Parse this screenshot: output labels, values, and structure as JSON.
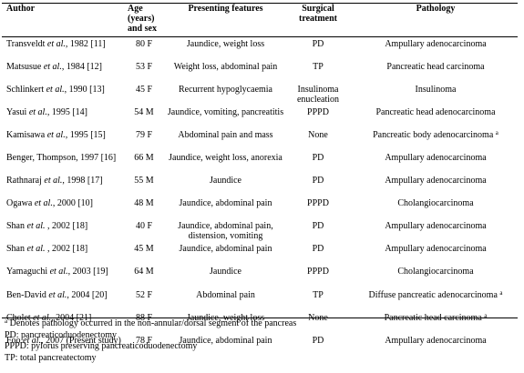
{
  "caption_fragment": "",
  "columns": {
    "author": "Author",
    "age_sex": "Age (years) and sex",
    "features": "Presenting features",
    "surgery": "Surgical treatment",
    "pathology": "Pathology"
  },
  "rows": [
    {
      "author_name": "Transveldt ",
      "author_etal": "et al.",
      "author_rest": ", 1982 [11]",
      "age": "80 F",
      "features": "Jaundice, weight loss",
      "surgery": "PD",
      "pathology": "Ampullary adenocarcinoma",
      "sup": ""
    },
    {
      "author_name": "Matsusue ",
      "author_etal": "et al.",
      "author_rest": ", 1984 [12]",
      "age": "53 F",
      "features": "Weight loss, abdominal pain",
      "surgery": "TP",
      "pathology": "Pancreatic head carcinoma",
      "sup": ""
    },
    {
      "author_name": "Schlinkert ",
      "author_etal": "et al.",
      "author_rest": ", 1990 [13]",
      "age": "45 F",
      "features": "Recurrent hypoglycaemia",
      "surgery": "Insulinoma enucleation",
      "pathology": "Insulinoma",
      "sup": ""
    },
    {
      "author_name": "Yasui ",
      "author_etal": "et al.",
      "author_rest": ", 1995 [14]",
      "age": "54 M",
      "features": "Jaundice, vomiting, pancreatitis",
      "surgery": "PPPD",
      "pathology": "Pancreatic head adenocarcinoma",
      "sup": ""
    },
    {
      "author_name": "Kamisawa ",
      "author_etal": "et al.",
      "author_rest": ", 1995 [15]",
      "age": "79 F",
      "features": "Abdominal pain and mass",
      "surgery": "None",
      "pathology": "Pancreatic body adenocarcinoma",
      "sup": "a"
    },
    {
      "author_name": "Benger, Thompson, 1997 [16]",
      "author_etal": "",
      "author_rest": "",
      "age": "66 M",
      "features": "Jaundice, weight loss, anorexia",
      "surgery": "PD",
      "pathology": "Ampullary adenocarcinoma",
      "sup": ""
    },
    {
      "author_name": "Rathnaraj ",
      "author_etal": "et al.",
      "author_rest": ", 1998 [17]",
      "age": "55 M",
      "features": "Jaundice",
      "surgery": "PD",
      "pathology": "Ampullary adenocarcinoma",
      "sup": ""
    },
    {
      "author_name": "Ogawa ",
      "author_etal": "et al.",
      "author_rest": ", 2000 [10]",
      "age": "48 M",
      "features": "Jaundice, abdominal pain",
      "surgery": "PPPD",
      "pathology": "Cholangiocarcinoma",
      "sup": ""
    },
    {
      "author_name": "Shan ",
      "author_etal": "et al.",
      "author_rest": " , 2002 [18]",
      "age": "40 F",
      "features": "Jaundice, abdominal pain, distension, vomiting",
      "surgery": "PD",
      "pathology": "Ampullary adenocarcinoma",
      "sup": ""
    },
    {
      "author_name": "Shan ",
      "author_etal": "et al.",
      "author_rest": " , 2002 [18]",
      "age": "45 M",
      "features": "Jaundice, abdominal pain",
      "surgery": "PD",
      "pathology": "Ampullary adenocarcinoma",
      "sup": ""
    },
    {
      "author_name": "Yamaguchi ",
      "author_etal": "et al.",
      "author_rest": ", 2003 [19]",
      "age": "64 M",
      "features": "Jaundice",
      "surgery": "PPPD",
      "pathology": "Cholangiocarcinoma",
      "sup": ""
    },
    {
      "author_name": "Ben-David ",
      "author_etal": "et al.",
      "author_rest": ", 2004 [20]",
      "age": "52 F",
      "features": "Abdominal pain",
      "surgery": "TP",
      "pathology": "Diffuse pancreatic adenocarcinoma",
      "sup": "a"
    },
    {
      "author_name": "Cholet ",
      "author_etal": "et al.",
      "author_rest": ", 2004 [21]",
      "age": "88 F",
      "features": "Jaundice, weight loss",
      "surgery": "None",
      "pathology": "Pancreatic head carcinoma",
      "sup": "a"
    },
    {
      "author_name": "Foo ",
      "author_etal": "et al.",
      "author_rest": ", 2007 (Present study)",
      "age": "78 F",
      "features": "Jaundice, abdominal pain",
      "surgery": "PD",
      "pathology": "Ampullary adenocarcinoma",
      "sup": ""
    }
  ],
  "footnotes": {
    "note_a_mark": "a",
    "note_a_text": " Denotes pathology occurred in the non-annular/dorsal segment of the pancreas",
    "pd": "PD: pancreaticoduodenectomy",
    "pppd": "PPPD: pylorus preserving pancreaticoduodenectomy",
    "tp": "TP: total pancreatectomy"
  }
}
